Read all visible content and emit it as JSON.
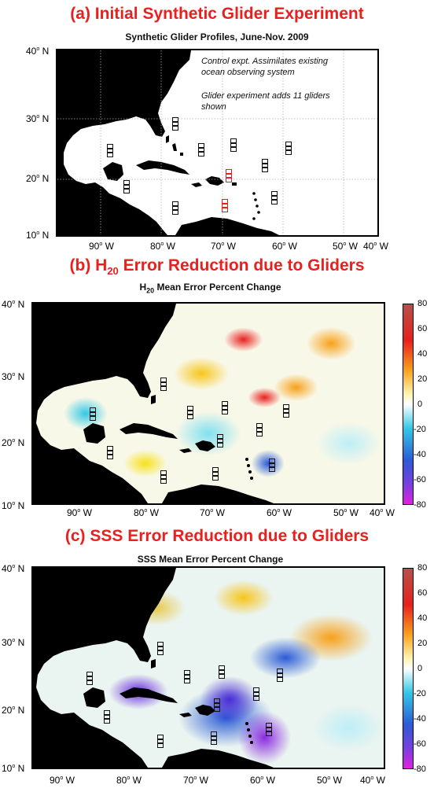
{
  "panel_a": {
    "title": "(a) Initial Synthetic Glider Experiment",
    "subtitle": "Synthetic Glider Profiles, June-Nov. 2009",
    "note_line1": "Control expt. Assimilates existing",
    "note_line2": "ocean observing system",
    "note_line3": "Glider experiment adds 11 gliders",
    "note_line4": "shown"
  },
  "panel_b": {
    "title_main": "(b) H",
    "title_sub": "20",
    "title_rest": " Error Reduction due to Gliders",
    "subtitle_main": "H",
    "subtitle_sub": "20",
    "subtitle_rest": " Mean Error Percent Change"
  },
  "panel_c": {
    "title": "(c) SSS Error Reduction due to Gliders",
    "subtitle": "SSS Mean Error Percent Change"
  },
  "lat_ticks": [
    "40",
    "30",
    "20",
    "10"
  ],
  "lat_unit": "N",
  "lon_ticks": [
    "90",
    "80",
    "70",
    "60",
    "50",
    "40"
  ],
  "lon_unit": "W",
  "colorbar_ticks": [
    "80",
    "60",
    "40",
    "20",
    "0",
    "-20",
    "-40",
    "-60",
    "-80"
  ],
  "colors": {
    "title_red": "#e8201e",
    "land": "#000000",
    "ocean": "#ffffff",
    "colorbar": [
      "#b5514a",
      "#e8201e",
      "#f7a11a",
      "#ffffff",
      "#33c9e6",
      "#2b5bd6",
      "#e020e0"
    ]
  }
}
